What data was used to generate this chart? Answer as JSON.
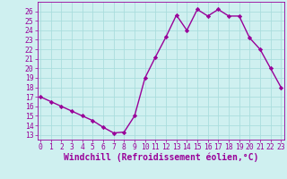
{
  "x": [
    0,
    1,
    2,
    3,
    4,
    5,
    6,
    7,
    8,
    9,
    10,
    11,
    12,
    13,
    14,
    15,
    16,
    17,
    18,
    19,
    20,
    21,
    22,
    23
  ],
  "y": [
    17.0,
    16.5,
    16.0,
    15.5,
    15.0,
    14.5,
    13.8,
    13.2,
    13.3,
    15.0,
    19.0,
    21.2,
    23.3,
    25.6,
    24.0,
    26.2,
    25.5,
    26.2,
    25.5,
    25.5,
    23.2,
    22.0,
    20.0,
    18.0
  ],
  "line_color": "#990099",
  "marker": "D",
  "marker_size": 2.2,
  "bg_color": "#cff0f0",
  "grid_color": "#aadddd",
  "xlabel": "Windchill (Refroidissement éolien,°C)",
  "xlabel_fontsize": 7,
  "ylim": [
    12.5,
    27.0
  ],
  "yticks": [
    13,
    14,
    15,
    16,
    17,
    18,
    19,
    20,
    21,
    22,
    23,
    24,
    25,
    26
  ],
  "xticks": [
    0,
    1,
    2,
    3,
    4,
    5,
    6,
    7,
    8,
    9,
    10,
    11,
    12,
    13,
    14,
    15,
    16,
    17,
    18,
    19,
    20,
    21,
    22,
    23
  ],
  "tick_fontsize": 5.8,
  "line_width": 1.0,
  "xlim": [
    -0.3,
    23.3
  ]
}
